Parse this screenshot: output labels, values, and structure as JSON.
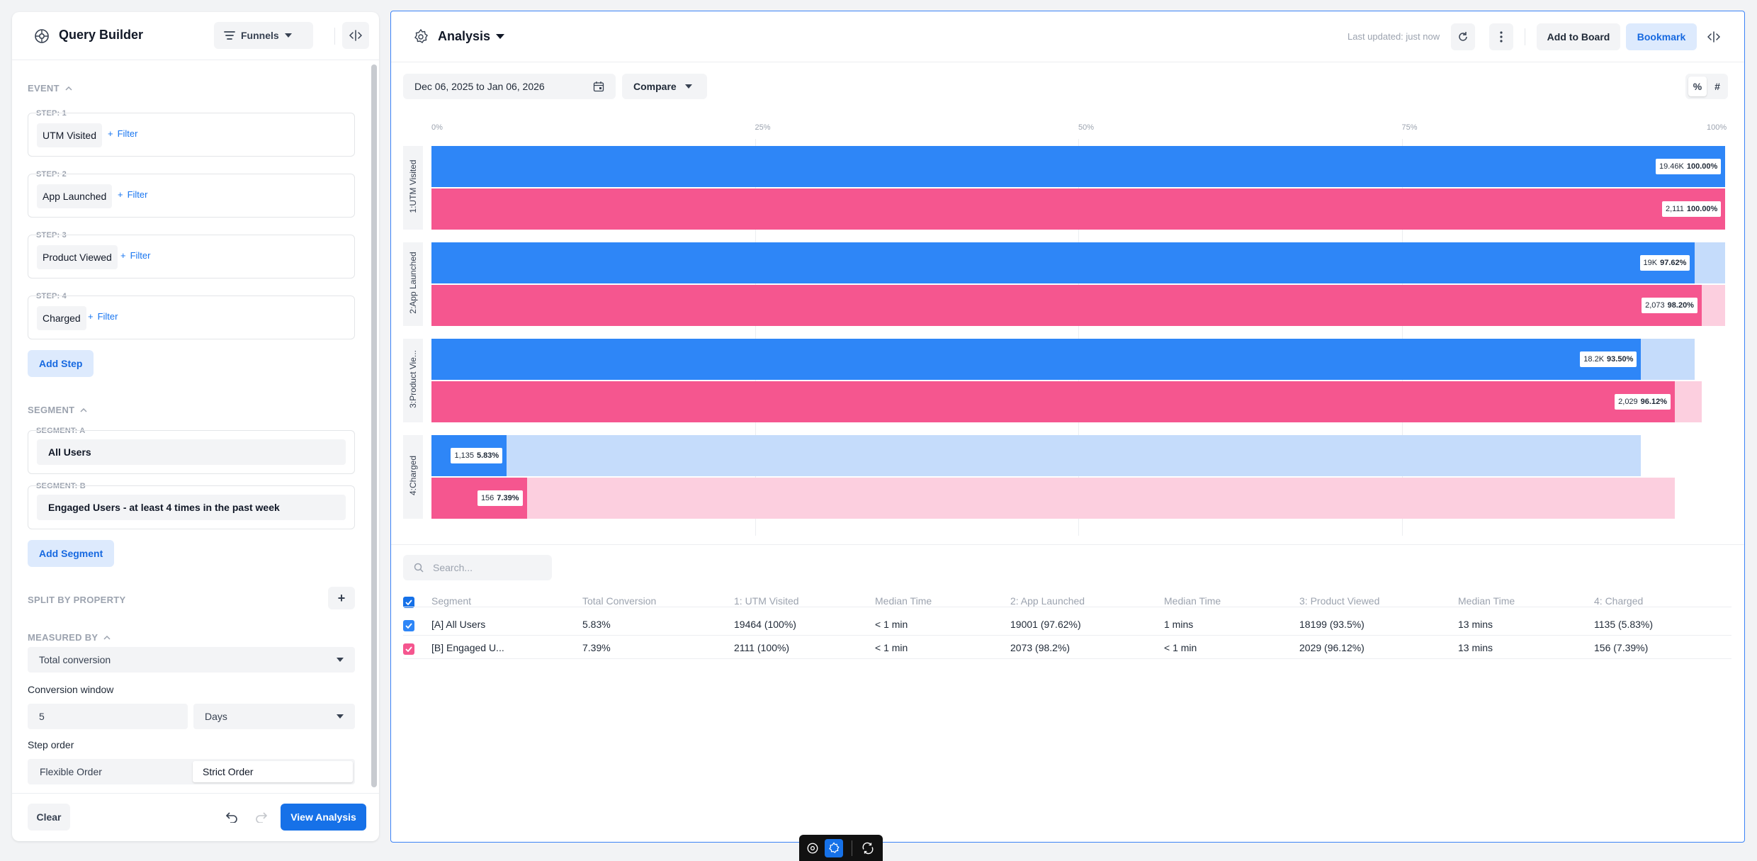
{
  "query_builder": {
    "title": "Query Builder",
    "funnels_label": "Funnels",
    "event_section": "EVENT",
    "steps": [
      {
        "label": "STEP: 1",
        "event": "UTM Visited"
      },
      {
        "label": "STEP: 2",
        "event": "App Launched"
      },
      {
        "label": "STEP: 3",
        "event": "Product Viewed"
      },
      {
        "label": "STEP: 4",
        "event": "Charged"
      }
    ],
    "filter_label": "Filter",
    "add_step": "Add Step",
    "segment_section": "SEGMENT",
    "segments": [
      {
        "label": "SEGMENT: A",
        "value": "All Users"
      },
      {
        "label": "SEGMENT: B",
        "value": "Engaged Users - at least 4 times in the past week"
      }
    ],
    "add_segment": "Add Segment",
    "split_by": "SPLIT BY PROPERTY",
    "split_add": "+",
    "measured_by": "MEASURED BY",
    "measure_select": "Total conversion",
    "conversion_window_label": "Conversion window",
    "conversion_window_value": "5",
    "conversion_window_unit": "Days",
    "step_order_label": "Step order",
    "step_order_options": [
      "Flexible Order",
      "Strict Order"
    ],
    "step_order_selected": "Strict Order",
    "clear": "Clear",
    "view_analysis": "View Analysis"
  },
  "analysis": {
    "title": "Analysis",
    "last_updated": "Last updated: just now",
    "add_to_board": "Add to Board",
    "bookmark": "Bookmark",
    "date_range": "Dec 06, 2025 to Jan 06, 2026",
    "compare": "Compare",
    "mode_percent": "%",
    "mode_count": "#",
    "mode_selected": "%",
    "search_placeholder": "Search..."
  },
  "colors": {
    "segment_a": "#2e86f7",
    "segment_a_light": "#c5dcfb",
    "segment_b": "#f5568f",
    "segment_b_light": "#fccfdf",
    "accent": "#1671e8"
  },
  "chart_data": {
    "type": "bar",
    "orientation": "horizontal",
    "x_ticks": [
      "0%",
      "25%",
      "50%",
      "75%",
      "100%"
    ],
    "xlim": [
      0,
      100
    ],
    "categories": [
      "1:UTM Visited",
      "2:App Launched",
      "3:Product Vie...",
      "4:Charged"
    ],
    "series": [
      {
        "segment": "A",
        "values": [
          100.0,
          97.62,
          93.5,
          5.83
        ],
        "counts": [
          "19.46K",
          "19K",
          "18.2K",
          "1,135"
        ],
        "pct_labels": [
          "100.00%",
          "97.62%",
          "93.50%",
          "5.83%"
        ],
        "previous_step_values": [
          100.0,
          100.0,
          97.62,
          93.5
        ]
      },
      {
        "segment": "B",
        "values": [
          100.0,
          98.2,
          96.12,
          7.39
        ],
        "counts": [
          "2,111",
          "2,073",
          "2,029",
          "156"
        ],
        "pct_labels": [
          "100.00%",
          "98.20%",
          "96.12%",
          "7.39%"
        ],
        "previous_step_values": [
          100.0,
          100.0,
          98.2,
          96.12
        ]
      }
    ]
  },
  "table": {
    "headers": [
      "Segment",
      "Total Conversion",
      "1: UTM Visited",
      "Median Time",
      "2: App Launched",
      "Median Time",
      "3: Product Viewed",
      "Median Time",
      "4: Charged"
    ],
    "rows": [
      [
        "[A] All Users",
        "5.83%",
        "19464 (100%)",
        "< 1 min",
        "19001 (97.62%)",
        "1 mins",
        "18199 (93.5%)",
        "13 mins",
        "1135 (5.83%)"
      ],
      [
        "[B] Engaged U...",
        "7.39%",
        "2111 (100%)",
        "< 1 min",
        "2073 (98.2%)",
        "< 1 min",
        "2029 (96.12%)",
        "13 mins",
        "156 (7.39%)"
      ]
    ]
  },
  "icons": [
    "query-builder-icon",
    "funnel-icon",
    "chevron-down-icon",
    "collapse-panel-icon",
    "chevron-up-icon",
    "plus-icon",
    "undo-icon",
    "redo-icon",
    "analysis-icon",
    "refresh-icon",
    "more-vertical-icon",
    "calendar-icon",
    "search-icon",
    "checkbox-icon"
  ]
}
